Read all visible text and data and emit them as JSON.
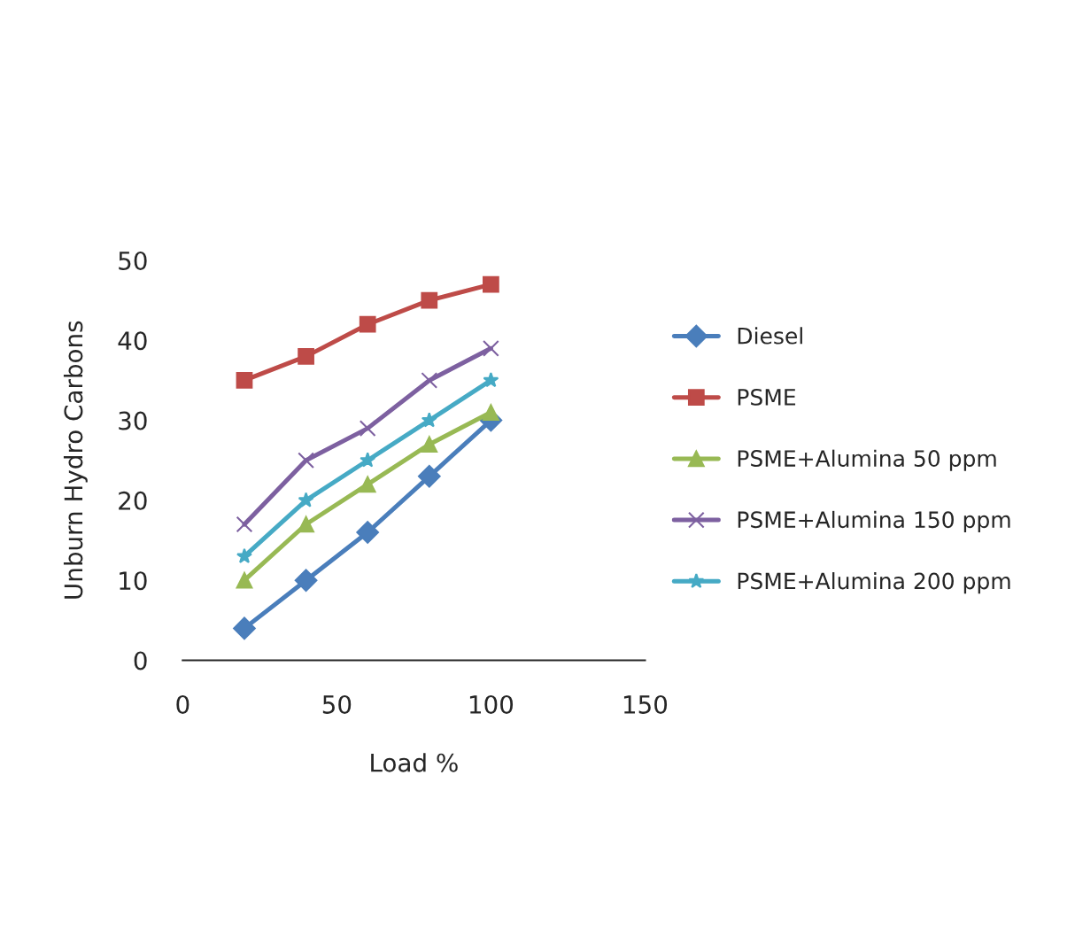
{
  "chart_data": {
    "type": "line",
    "xlabel": "Load %",
    "ylabel": "Unburn Hydro Carbons",
    "x": [
      20,
      40,
      60,
      80,
      100
    ],
    "series": [
      {
        "name": "Diesel",
        "color": "#4a7ebb",
        "marker": "diamond",
        "values": [
          4,
          10,
          16,
          23,
          30
        ]
      },
      {
        "name": "PSME",
        "color": "#be4b48",
        "marker": "square",
        "values": [
          35,
          38,
          42,
          45,
          47
        ]
      },
      {
        "name": "PSME+Alumina 50 ppm",
        "color": "#98b954",
        "marker": "triangle",
        "values": [
          10,
          17,
          22,
          27,
          31
        ]
      },
      {
        "name": "PSME+Alumina 150 ppm",
        "color": "#7d60a0",
        "marker": "cross",
        "values": [
          17,
          25,
          29,
          35,
          39
        ]
      },
      {
        "name": "PSME+Alumina 200 ppm",
        "color": "#46aac5",
        "marker": "star",
        "values": [
          13,
          20,
          25,
          30,
          35
        ]
      }
    ],
    "xlim": [
      0,
      150
    ],
    "xticks": [
      0,
      50,
      100,
      150
    ],
    "ylim": [
      0,
      50
    ],
    "yticks": [
      0,
      10,
      20,
      30,
      40,
      50
    ],
    "grid": false,
    "legend": "right",
    "line_style": "solid"
  }
}
